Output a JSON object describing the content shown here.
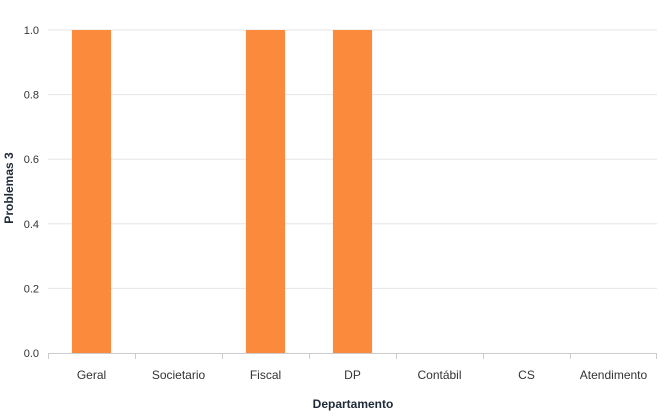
{
  "chart_data": {
    "type": "bar",
    "categories": [
      "Geral",
      "Societario",
      "Fiscal",
      "DP",
      "Contábil",
      "CS",
      "Atendimento"
    ],
    "series": [
      {
        "values": [
          1,
          0,
          1,
          1,
          0,
          0,
          0
        ],
        "color": "#fb8a3c"
      }
    ],
    "xlabel": "Departamento",
    "ylabel": "Problemas 3",
    "ylim": [
      0,
      1
    ],
    "yticks": [
      "0.0",
      "0.2",
      "0.4",
      "0.6",
      "0.8",
      "1.0"
    ],
    "grid": true,
    "legend": "none"
  },
  "colors": {
    "bar": "#fb8a3c",
    "grid": "#e6e6e6",
    "axis": "#cccccc",
    "text": "#333333",
    "title": "#1f2937"
  }
}
